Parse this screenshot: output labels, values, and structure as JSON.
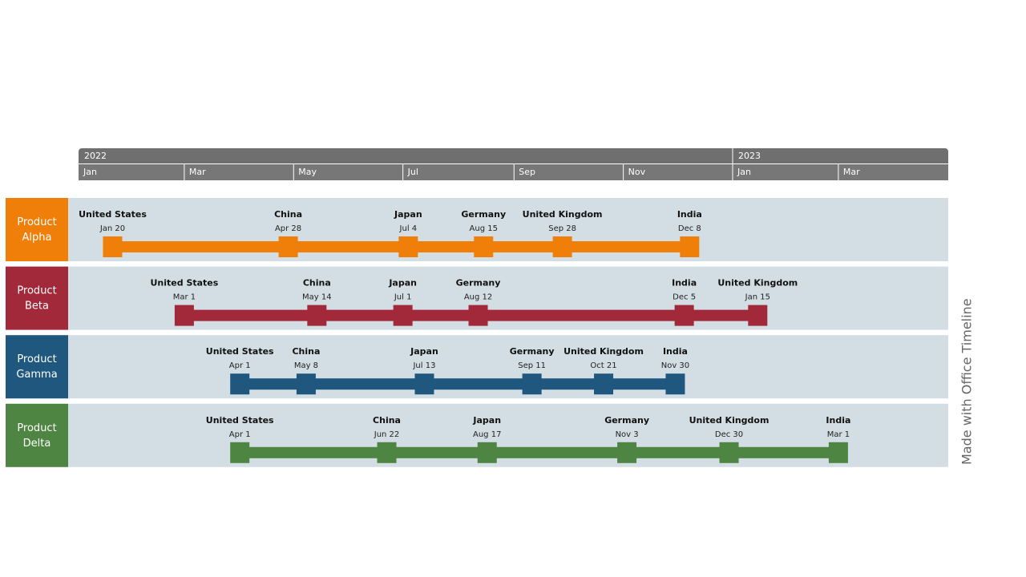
{
  "header": {
    "years": [
      "2022",
      "2023"
    ],
    "months": [
      "Jan",
      "Mar",
      "May",
      "Jul",
      "Sep",
      "Nov",
      "Jan",
      "Mar"
    ]
  },
  "rows": [
    {
      "name": "Product Alpha",
      "color": "#f07f09",
      "milestones": [
        {
          "label": "United States",
          "date": "Jan 20"
        },
        {
          "label": "China",
          "date": "Apr 28"
        },
        {
          "label": "Japan",
          "date": "Jul 4"
        },
        {
          "label": "Germany",
          "date": "Aug 15"
        },
        {
          "label": "United Kingdom",
          "date": "Sep 28"
        },
        {
          "label": "India",
          "date": "Dec 8"
        }
      ]
    },
    {
      "name": "Product Beta",
      "color": "#a2293a",
      "milestones": [
        {
          "label": "United States",
          "date": "Mar 1"
        },
        {
          "label": "China",
          "date": "May 14"
        },
        {
          "label": "Japan",
          "date": "Jul 1"
        },
        {
          "label": "Germany",
          "date": "Aug 12"
        },
        {
          "label": "India",
          "date": "Dec 5"
        },
        {
          "label": "United Kingdom",
          "date": "Jan 15"
        }
      ]
    },
    {
      "name": "Product Gamma",
      "color": "#1f577e",
      "milestones": [
        {
          "label": "United States",
          "date": "Apr 1"
        },
        {
          "label": "China",
          "date": "May 8"
        },
        {
          "label": "Japan",
          "date": "Jul 13"
        },
        {
          "label": "Germany",
          "date": "Sep 11"
        },
        {
          "label": "United Kingdom",
          "date": "Oct 21"
        },
        {
          "label": "India",
          "date": "Nov 30"
        }
      ]
    },
    {
      "name": "Product Delta",
      "color": "#4e8542",
      "milestones": [
        {
          "label": "United States",
          "date": "Apr 1"
        },
        {
          "label": "China",
          "date": "Jun 22"
        },
        {
          "label": "Japan",
          "date": "Aug 17"
        },
        {
          "label": "Germany",
          "date": "Nov 3"
        },
        {
          "label": "United Kingdom",
          "date": "Dec 30"
        },
        {
          "label": "India",
          "date": "Mar 1"
        }
      ]
    }
  ],
  "watermark": "Made with  Office Timeline"
}
